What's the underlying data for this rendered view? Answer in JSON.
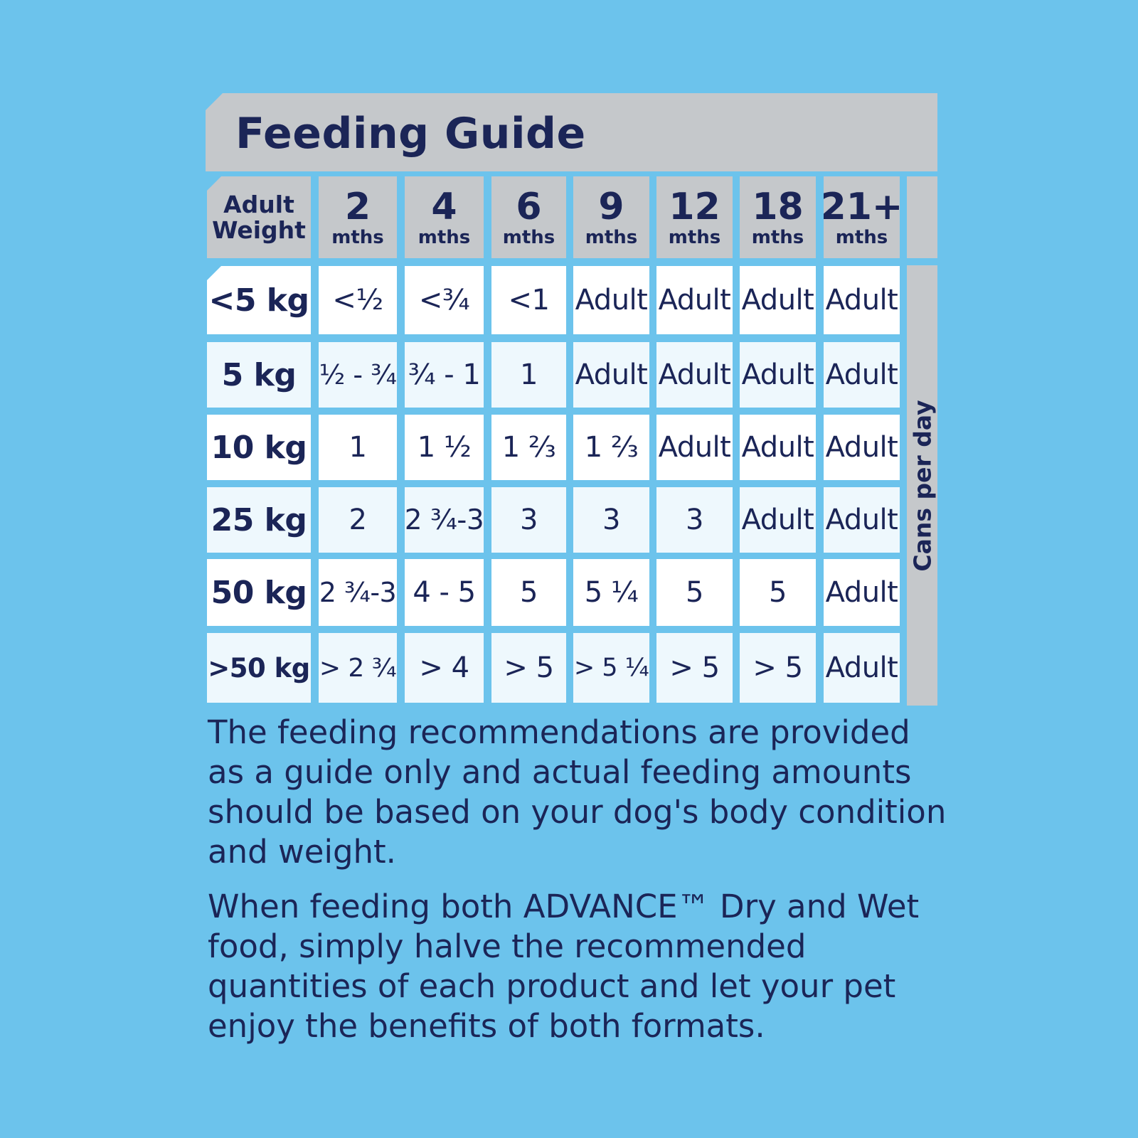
{
  "title": "Feeding Guide",
  "header": {
    "corner_line1": "Adult",
    "corner_line2": "Weight",
    "columns": [
      {
        "num": "2",
        "unit": "mths"
      },
      {
        "num": "4",
        "unit": "mths"
      },
      {
        "num": "6",
        "unit": "mths"
      },
      {
        "num": "9",
        "unit": "mths"
      },
      {
        "num": "12",
        "unit": "mths"
      },
      {
        "num": "18",
        "unit": "mths"
      },
      {
        "num": "21+",
        "unit": "mths"
      }
    ]
  },
  "side_label": "Cans per day",
  "rows": [
    {
      "label": "<5 kg",
      "values": [
        "<½",
        "<¾",
        "<1",
        "Adult",
        "Adult",
        "Adult",
        "Adult"
      ]
    },
    {
      "label": "5 kg",
      "values": [
        "½ - ¾",
        "¾ - 1",
        "1",
        "Adult",
        "Adult",
        "Adult",
        "Adult"
      ]
    },
    {
      "label": "10 kg",
      "values": [
        "1",
        "1 ½",
        "1 ⅔",
        "1 ⅔",
        "Adult",
        "Adult",
        "Adult"
      ]
    },
    {
      "label": "25 kg",
      "values": [
        "2",
        "2 ¾-3",
        "3",
        "3",
        "3",
        "Adult",
        "Adult"
      ]
    },
    {
      "label": "50 kg",
      "values": [
        "2 ¾-3",
        "4 - 5",
        "5",
        "5 ¼",
        "5",
        "5",
        "Adult"
      ]
    },
    {
      "label": ">50 kg",
      "values": [
        "> 2 ¾",
        "> 4",
        "> 5",
        "> 5 ¼",
        "> 5",
        "> 5",
        "Adult"
      ]
    }
  ],
  "notes": [
    "The feeding recommendations are provided as a guide only and actual feeding amounts should be based on your dog's body condition and weight.",
    "When feeding both ADVANCE™ Dry and Wet food, simply halve the recommended quantities of each product and let your pet enjoy the benefits of both formats."
  ]
}
